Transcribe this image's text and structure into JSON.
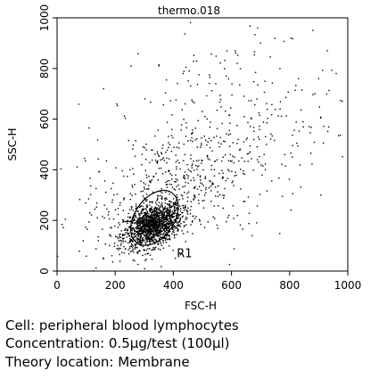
{
  "chart_data": {
    "type": "scatter",
    "title": "thermo.018",
    "xlabel": "FSC-H",
    "ylabel": "SSC-H",
    "xlim": [
      0,
      1000
    ],
    "ylim": [
      0,
      1000
    ],
    "xticks": [
      0,
      200,
      400,
      600,
      800,
      1000
    ],
    "yticks": [
      0,
      200,
      400,
      600,
      800,
      1000
    ],
    "grid": false,
    "gates": [
      {
        "label": "R1",
        "shape": "ellipse",
        "center": [
          335,
          210
        ],
        "width": 210,
        "height": 155,
        "rotation": -55
      }
    ],
    "populations": [
      {
        "name": "",
        "center": [
          330,
          180
        ],
        "spread": [
          50,
          40
        ],
        "count": 1400
      },
      {
        "name": "",
        "center": [
          380,
          330
        ],
        "spread": [
          150,
          110
        ],
        "count": 400
      },
      {
        "name": "",
        "center": [
          560,
          520
        ],
        "spread": [
          200,
          200
        ],
        "count": 350
      }
    ],
    "sample_points": [
      [
        900,
        760
      ],
      [
        960,
        780
      ],
      [
        880,
        950
      ],
      [
        805,
        920
      ],
      [
        930,
        870
      ],
      [
        690,
        960
      ],
      [
        700,
        900
      ],
      [
        620,
        820
      ],
      [
        160,
        720
      ],
      [
        110,
        565
      ],
      [
        170,
        435
      ],
      [
        360,
        130
      ],
      [
        250,
        90
      ],
      [
        215,
        65
      ],
      [
        440,
        460
      ],
      [
        720,
        500
      ],
      [
        570,
        370
      ],
      [
        610,
        450
      ],
      [
        480,
        830
      ],
      [
        455,
        790
      ]
    ]
  },
  "caption": {
    "cell": "Cell: peripheral blood lymphocytes",
    "concentration": "Concentration: 0.5μg/test (100μl)",
    "location": "Theory location: Membrane"
  }
}
